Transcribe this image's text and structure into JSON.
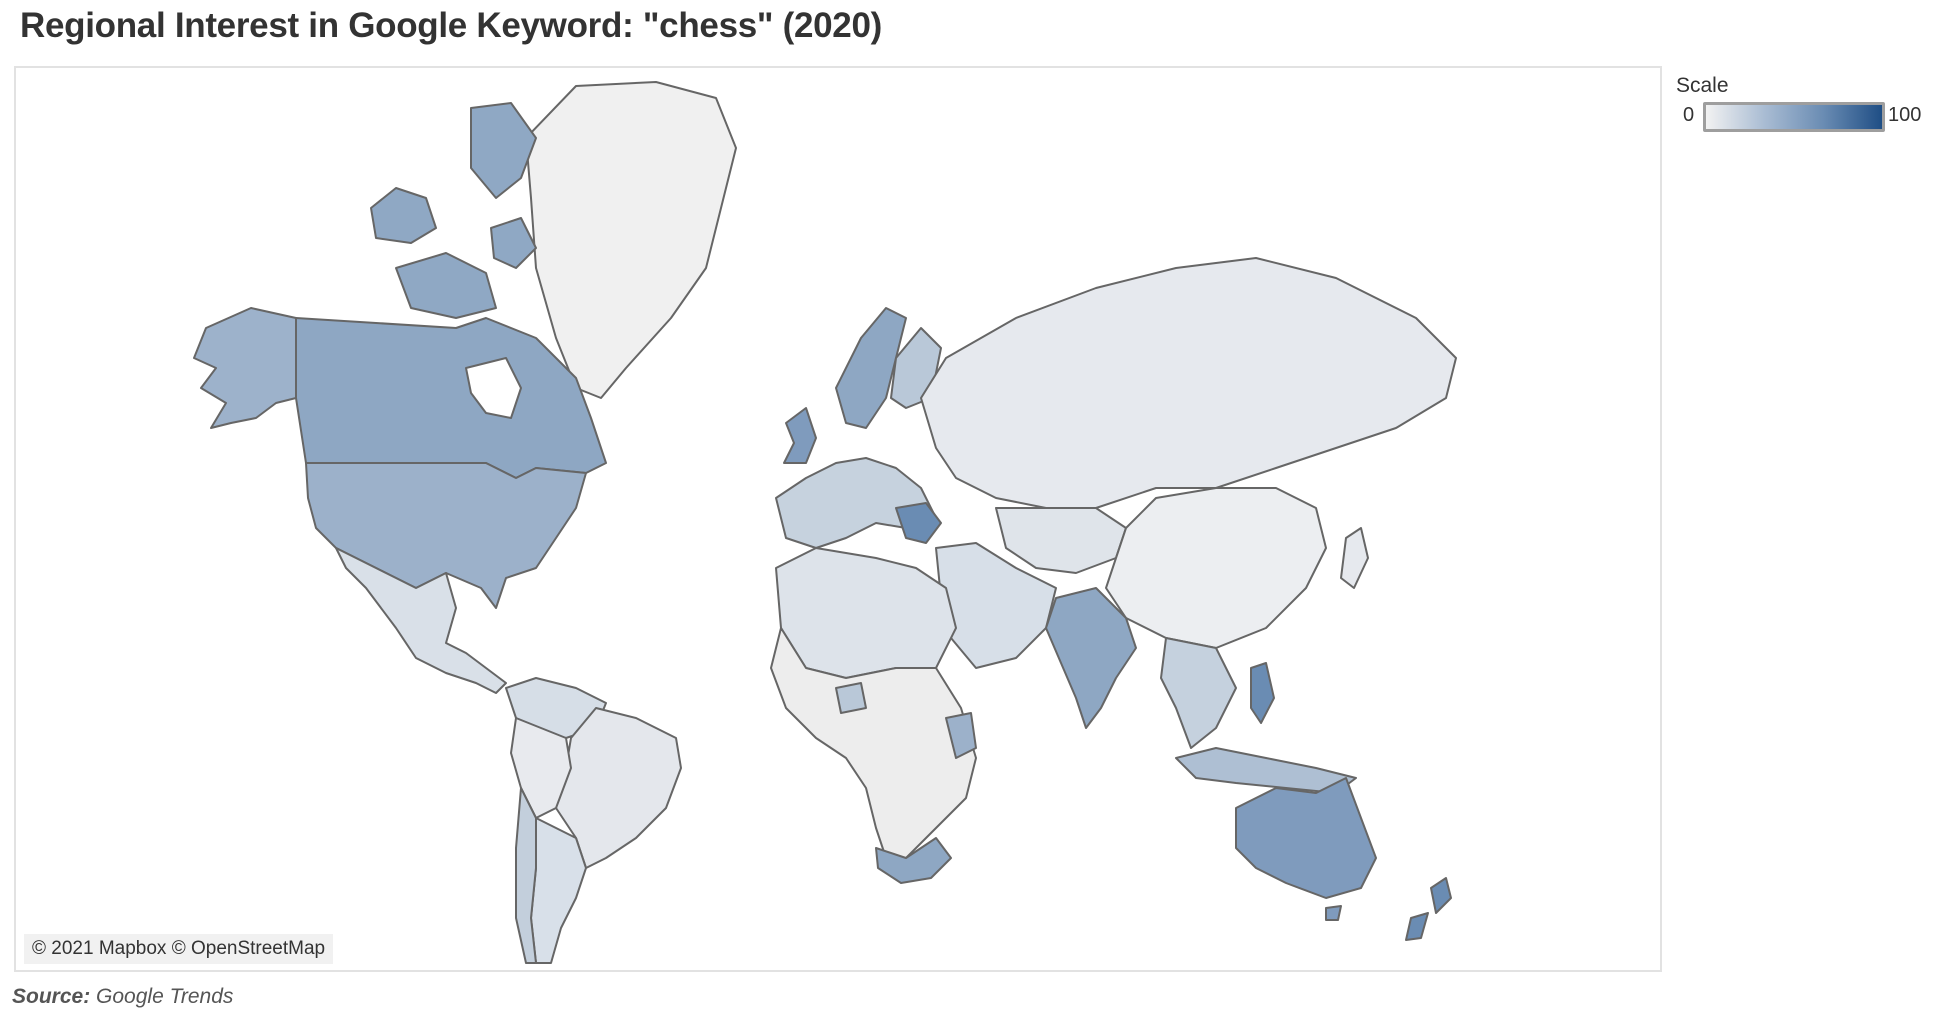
{
  "title": "Regional Interest in Google Keyword: \"chess\" (2020)",
  "legend": {
    "title": "Scale",
    "min": "0",
    "max": "100",
    "color_low": "#f2f2f2",
    "color_high": "#1f4e85"
  },
  "attribution": "© 2021 Mapbox © OpenStreetMap",
  "source": {
    "label": "Source:",
    "value": "Google Trends"
  },
  "regions": [
    {
      "name": "Canada",
      "value": 55
    },
    {
      "name": "United States",
      "value": 45
    },
    {
      "name": "Alaska (US)",
      "value": 45
    },
    {
      "name": "Greenland",
      "value": 5
    },
    {
      "name": "Mexico",
      "value": 15
    },
    {
      "name": "Brazil",
      "value": 12
    },
    {
      "name": "Argentina",
      "value": 15
    },
    {
      "name": "Chile",
      "value": 25
    },
    {
      "name": "Colombia",
      "value": 18
    },
    {
      "name": "Peru",
      "value": 15
    },
    {
      "name": "Venezuela",
      "value": 12
    },
    {
      "name": "Bolivia",
      "value": 10
    },
    {
      "name": "Russia",
      "value": 12
    },
    {
      "name": "China",
      "value": 6
    },
    {
      "name": "Mongolia",
      "value": 6
    },
    {
      "name": "Kazakhstan",
      "value": 10
    },
    {
      "name": "India",
      "value": 45
    },
    {
      "name": "Australia",
      "value": 55
    },
    {
      "name": "New Zealand",
      "value": 60
    },
    {
      "name": "South Africa",
      "value": 45
    },
    {
      "name": "Kenya",
      "value": 40
    },
    {
      "name": "Nigeria",
      "value": 30
    },
    {
      "name": "Egypt",
      "value": 20
    },
    {
      "name": "Algeria",
      "value": 15
    },
    {
      "name": "Saudi Arabia",
      "value": 15
    },
    {
      "name": "Iran",
      "value": 10
    },
    {
      "name": "Philippines",
      "value": 55
    },
    {
      "name": "Indonesia",
      "value": 20
    },
    {
      "name": "Malaysia",
      "value": 35
    },
    {
      "name": "United Kingdom",
      "value": 65
    },
    {
      "name": "Norway",
      "value": 55
    },
    {
      "name": "Sweden",
      "value": 40
    },
    {
      "name": "Finland",
      "value": 30
    },
    {
      "name": "Serbia",
      "value": 75
    },
    {
      "name": "Armenia",
      "value": 60
    },
    {
      "name": "Spain",
      "value": 20
    },
    {
      "name": "France",
      "value": 20
    },
    {
      "name": "Germany",
      "value": 30
    }
  ]
}
